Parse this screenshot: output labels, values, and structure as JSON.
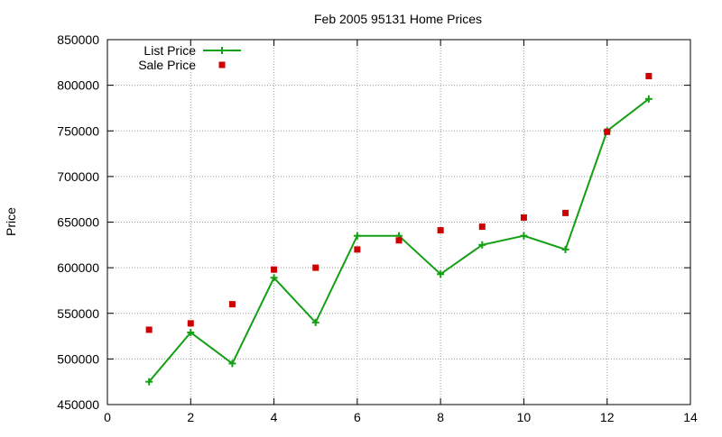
{
  "chart_data": {
    "type": "line",
    "title": "Feb 2005 95131 Home Prices",
    "xlabel": "",
    "ylabel": "Price",
    "xlim": [
      0,
      14
    ],
    "ylim": [
      450000,
      850000
    ],
    "x_ticks": [
      "0",
      "2",
      "4",
      "6",
      "8",
      "10",
      "12",
      "14"
    ],
    "y_ticks": [
      "450000",
      "500000",
      "550000",
      "600000",
      "650000",
      "700000",
      "750000",
      "800000",
      "850000"
    ],
    "grid": true,
    "legend_position": "top-left",
    "series": [
      {
        "name": "List Price",
        "style": "line+cross",
        "color": "#14a014",
        "x": [
          1,
          2,
          3,
          4,
          5,
          6,
          7,
          8,
          9,
          10,
          11,
          12,
          13
        ],
        "y": [
          475000,
          529000,
          495000,
          589000,
          540000,
          635000,
          635000,
          593000,
          625000,
          635000,
          620000,
          750000,
          785000
        ]
      },
      {
        "name": "Sale Price",
        "style": "square-points",
        "color": "#cc0000",
        "x": [
          1,
          2,
          3,
          4,
          5,
          6,
          7,
          8,
          9,
          10,
          11,
          12,
          13
        ],
        "y": [
          532000,
          539000,
          560000,
          598000,
          600000,
          620000,
          630000,
          641000,
          645000,
          655000,
          660000,
          749000,
          810000
        ]
      }
    ]
  }
}
